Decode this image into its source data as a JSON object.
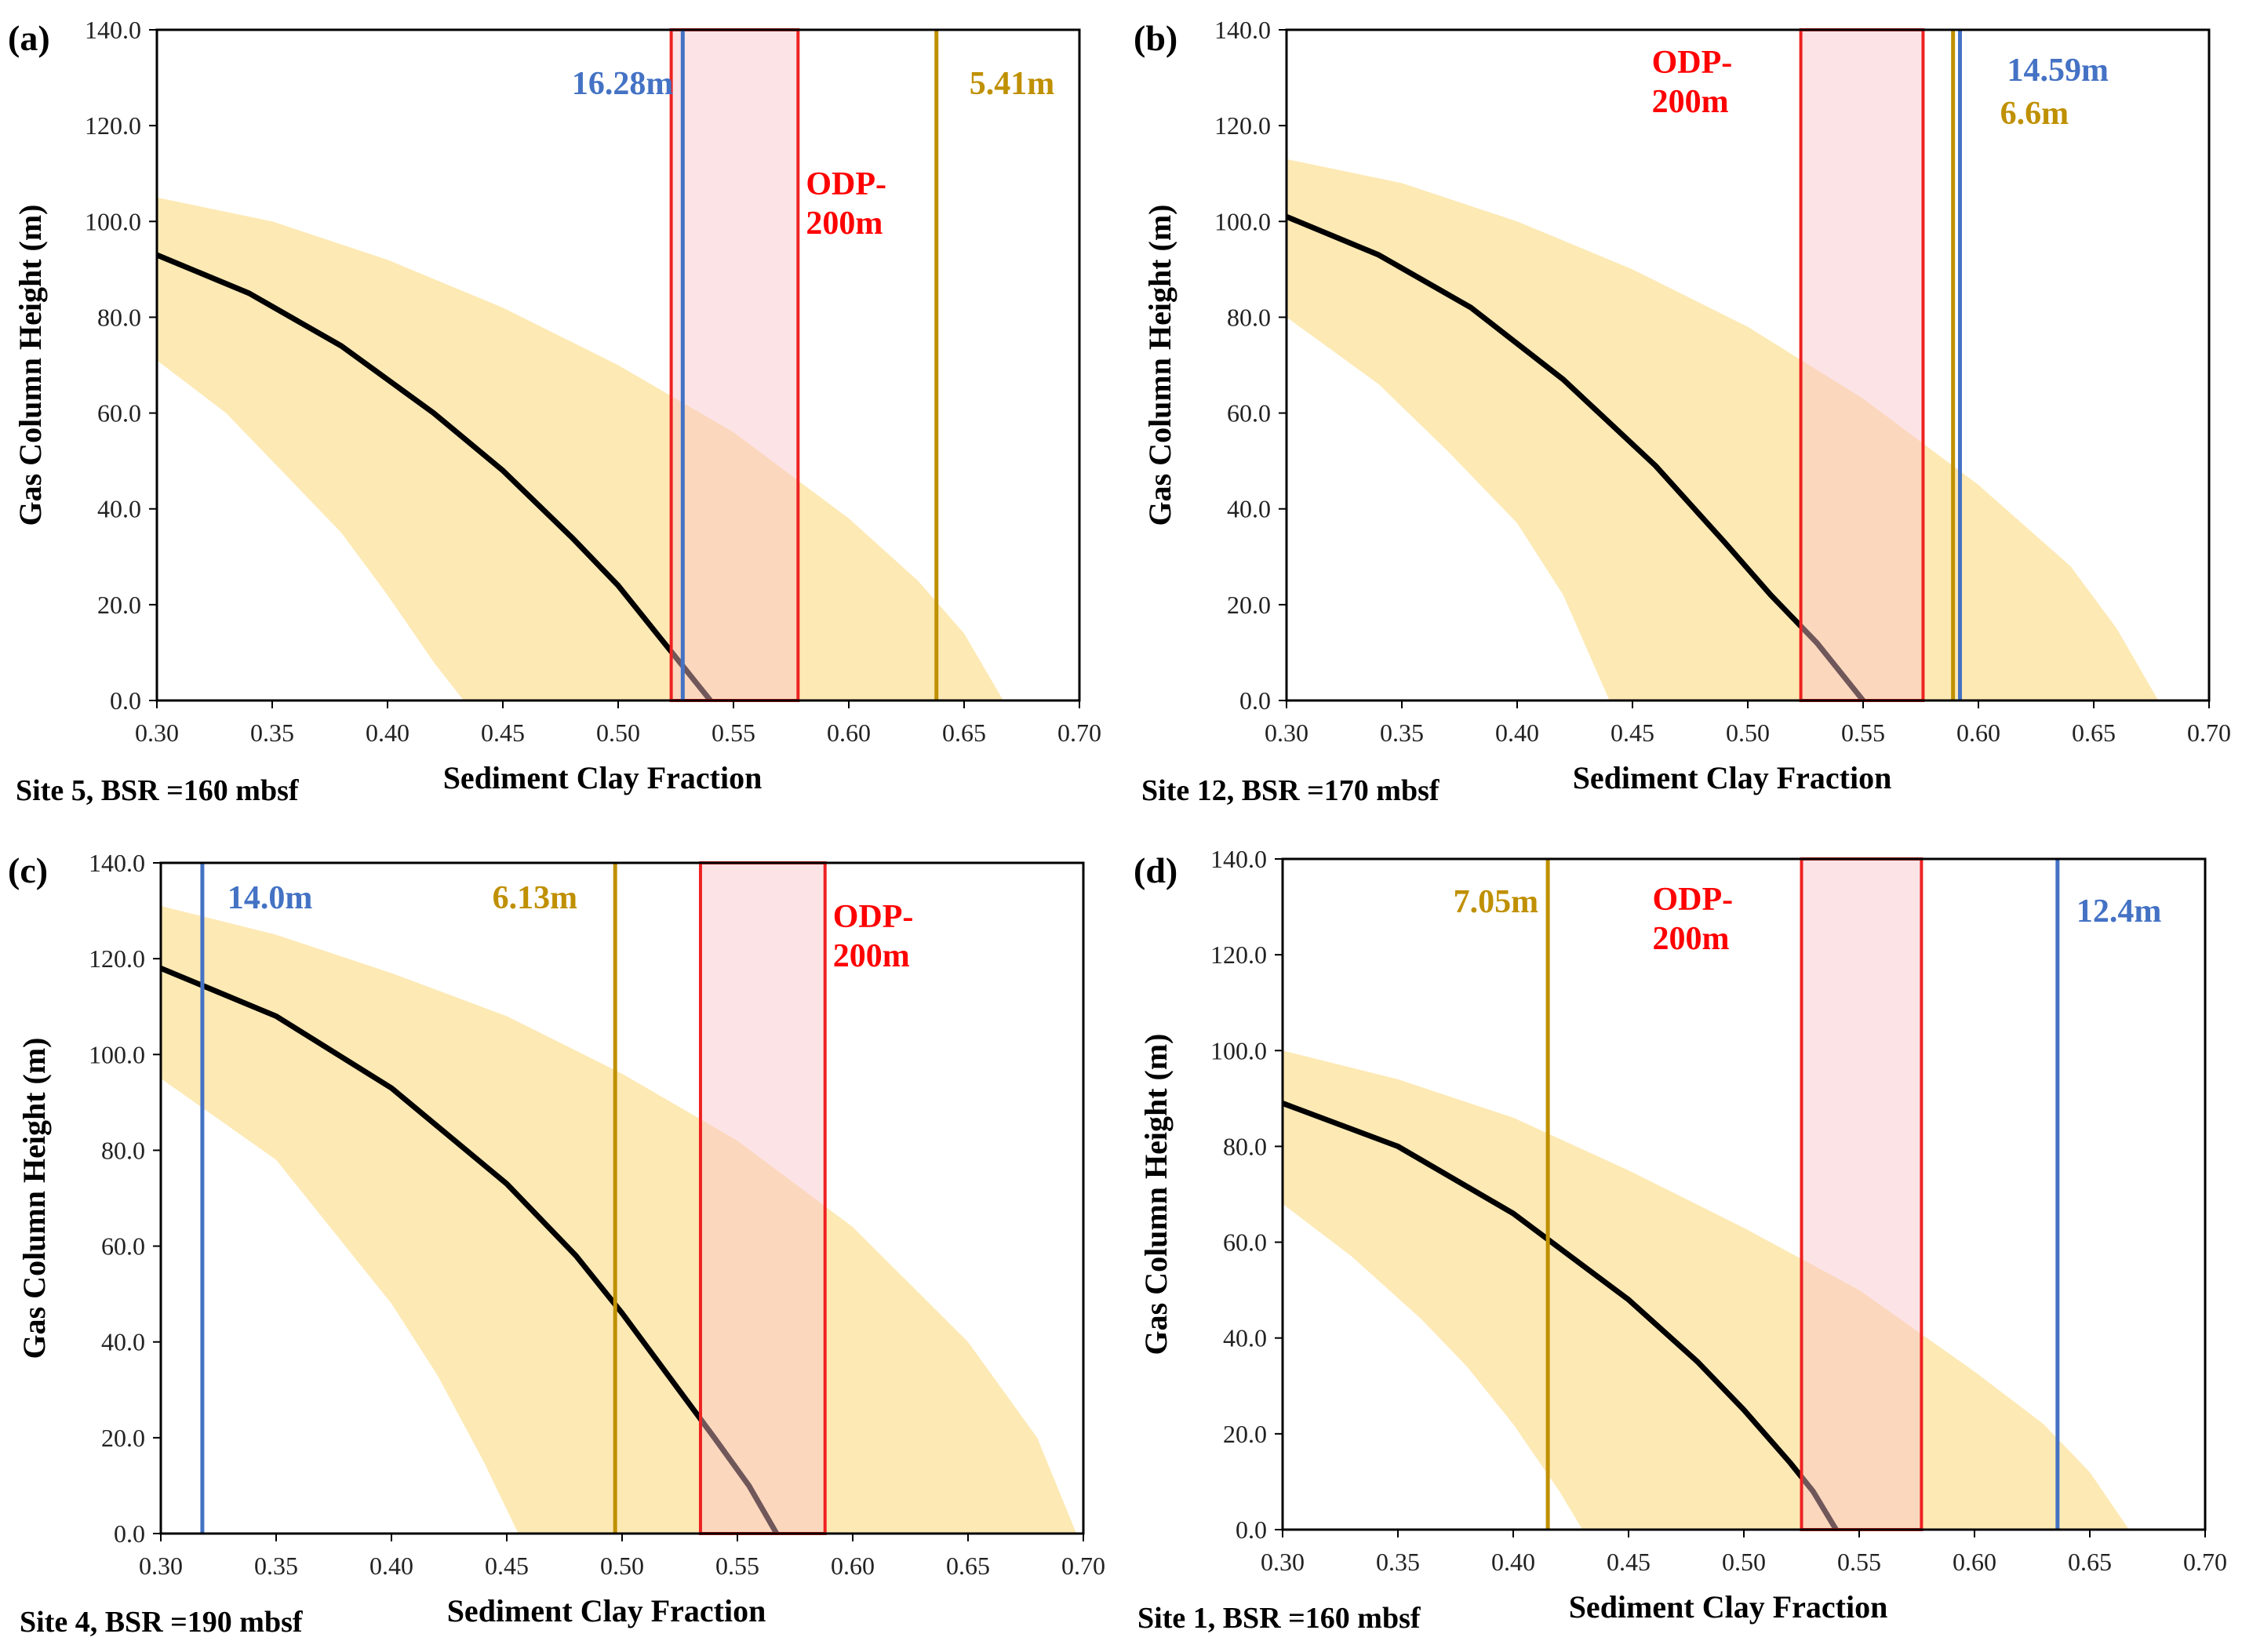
{
  "colors": {
    "band": "#fde9b4",
    "curve": "#000000",
    "odp_stroke": "#ee2222",
    "odp_fill": "#f9c0c8",
    "blue": "#4472c4",
    "gold": "#bf9000",
    "odp_text": "#ff0000"
  },
  "chart_data": [
    {
      "type": "line",
      "panel_label": "(a)",
      "caption": "Site 5, BSR =160 mbsf",
      "xlabel": "Sediment Clay Fraction",
      "ylabel": "Gas Column Height (m)",
      "xlim": [
        0.3,
        0.7
      ],
      "ylim": [
        0,
        140
      ],
      "x_ticks": [
        "0.30",
        "0.35",
        "0.40",
        "0.45",
        "0.50",
        "0.55",
        "0.60",
        "0.65",
        "0.70"
      ],
      "y_ticks": [
        "0.0",
        "20.0",
        "40.0",
        "60.0",
        "80.0",
        "100.0",
        "120.0",
        "140.0"
      ],
      "curve": {
        "x": [
          0.3,
          0.34,
          0.38,
          0.42,
          0.45,
          0.48,
          0.5,
          0.52,
          0.53,
          0.54
        ],
        "y": [
          93,
          85,
          74,
          60,
          48,
          34,
          24,
          12,
          6,
          0
        ]
      },
      "band_upper": {
        "x": [
          0.3,
          0.35,
          0.4,
          0.45,
          0.5,
          0.55,
          0.6,
          0.63,
          0.65,
          0.667
        ],
        "y": [
          105,
          100,
          92,
          82,
          70,
          56,
          38,
          25,
          14,
          0
        ]
      },
      "band_lower": {
        "x": [
          0.3,
          0.33,
          0.36,
          0.38,
          0.4,
          0.42,
          0.433
        ],
        "y": [
          71,
          60,
          45,
          35,
          22,
          8,
          0
        ]
      },
      "odp_range": [
        0.523,
        0.578
      ],
      "odp_label": [
        "ODP-",
        "200m"
      ],
      "vlines": [
        {
          "x": 0.528,
          "color": "blue",
          "label": "16.28m"
        },
        {
          "x": 0.638,
          "color": "gold",
          "label": "5.41m"
        }
      ]
    },
    {
      "type": "line",
      "panel_label": "(b)",
      "caption": "Site 12, BSR =170 mbsf",
      "xlabel": "Sediment Clay Fraction",
      "ylabel": "Gas Column Height (m)",
      "xlim": [
        0.3,
        0.7
      ],
      "ylim": [
        0,
        140
      ],
      "x_ticks": [
        "0.30",
        "0.35",
        "0.40",
        "0.45",
        "0.50",
        "0.55",
        "0.60",
        "0.65",
        "0.70"
      ],
      "y_ticks": [
        "0.0",
        "20.0",
        "40.0",
        "60.0",
        "80.0",
        "100.0",
        "120.0",
        "140.0"
      ],
      "curve": {
        "x": [
          0.3,
          0.34,
          0.38,
          0.42,
          0.46,
          0.49,
          0.51,
          0.53,
          0.54,
          0.55
        ],
        "y": [
          101,
          93,
          82,
          67,
          49,
          33,
          22,
          12,
          6,
          0
        ]
      },
      "band_upper": {
        "x": [
          0.3,
          0.35,
          0.4,
          0.45,
          0.5,
          0.55,
          0.6,
          0.64,
          0.66,
          0.678
        ],
        "y": [
          113,
          108,
          100,
          90,
          78,
          63,
          45,
          28,
          15,
          0
        ]
      },
      "band_lower": {
        "x": [
          0.3,
          0.34,
          0.37,
          0.4,
          0.42,
          0.44
        ],
        "y": [
          80,
          66,
          52,
          37,
          22,
          0
        ]
      },
      "odp_range": [
        0.523,
        0.576
      ],
      "odp_label": [
        "ODP-",
        "200m"
      ],
      "vlines": [
        {
          "x": 0.592,
          "color": "blue",
          "label": "14.59m"
        },
        {
          "x": 0.589,
          "color": "gold",
          "label": "6.6m"
        }
      ]
    },
    {
      "type": "line",
      "panel_label": "(c)",
      "caption": "Site 4, BSR =190 mbsf",
      "xlabel": "Sediment Clay Fraction",
      "ylabel": "Gas Column Height (m)",
      "xlim": [
        0.3,
        0.7
      ],
      "ylim": [
        0,
        140
      ],
      "x_ticks": [
        "0.30",
        "0.35",
        "0.40",
        "0.45",
        "0.50",
        "0.55",
        "0.60",
        "0.65",
        "0.70"
      ],
      "y_ticks": [
        "0.0",
        "20.0",
        "40.0",
        "60.0",
        "80.0",
        "100.0",
        "120.0",
        "140.0"
      ],
      "curve": {
        "x": [
          0.3,
          0.35,
          0.4,
          0.45,
          0.48,
          0.5,
          0.52,
          0.54,
          0.555,
          0.567
        ],
        "y": [
          118,
          108,
          93,
          73,
          58,
          46,
          33,
          20,
          10,
          0
        ]
      },
      "band_upper": {
        "x": [
          0.3,
          0.35,
          0.4,
          0.45,
          0.5,
          0.55,
          0.6,
          0.65,
          0.68,
          0.697
        ],
        "y": [
          131,
          125,
          117,
          108,
          96,
          82,
          64,
          40,
          20,
          0
        ]
      },
      "band_lower": {
        "x": [
          0.3,
          0.35,
          0.38,
          0.4,
          0.42,
          0.44,
          0.455
        ],
        "y": [
          95,
          78,
          60,
          48,
          33,
          15,
          0
        ]
      },
      "odp_range": [
        0.534,
        0.588
      ],
      "odp_label": [
        "ODP-",
        "200m"
      ],
      "vlines": [
        {
          "x": 0.318,
          "color": "blue",
          "label": "14.0m"
        },
        {
          "x": 0.497,
          "color": "gold",
          "label": "6.13m"
        }
      ]
    },
    {
      "type": "line",
      "panel_label": "(d)",
      "caption": "Site 1, BSR =160 mbsf",
      "xlabel": "Sediment Clay Fraction",
      "ylabel": "Gas Column Height (m)",
      "xlim": [
        0.3,
        0.7
      ],
      "ylim": [
        0,
        140
      ],
      "x_ticks": [
        "0.30",
        "0.35",
        "0.40",
        "0.45",
        "0.50",
        "0.55",
        "0.60",
        "0.65",
        "0.70"
      ],
      "y_ticks": [
        "0.0",
        "20.0",
        "40.0",
        "60.0",
        "80.0",
        "100.0",
        "120.0",
        "140.0"
      ],
      "curve": {
        "x": [
          0.3,
          0.35,
          0.4,
          0.45,
          0.48,
          0.5,
          0.52,
          0.53,
          0.54
        ],
        "y": [
          89,
          80,
          66,
          48,
          35,
          25,
          14,
          8,
          0
        ]
      },
      "band_upper": {
        "x": [
          0.3,
          0.35,
          0.4,
          0.45,
          0.5,
          0.55,
          0.6,
          0.63,
          0.65,
          0.667
        ],
        "y": [
          100,
          94,
          86,
          75,
          63,
          50,
          33,
          22,
          12,
          0
        ]
      },
      "band_lower": {
        "x": [
          0.3,
          0.33,
          0.36,
          0.38,
          0.4,
          0.42,
          0.43
        ],
        "y": [
          68,
          57,
          44,
          34,
          22,
          8,
          0
        ]
      },
      "odp_range": [
        0.525,
        0.577
      ],
      "odp_label": [
        "ODP-",
        "200m"
      ],
      "vlines": [
        {
          "x": 0.415,
          "color": "gold",
          "label": "7.05m"
        },
        {
          "x": 0.636,
          "color": "blue",
          "label": "12.4m"
        }
      ]
    }
  ]
}
